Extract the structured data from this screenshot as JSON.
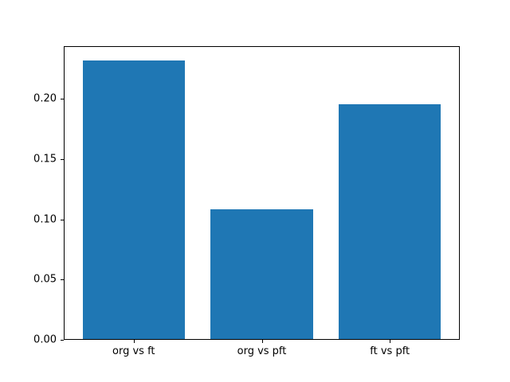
{
  "figure": {
    "background": "#ffffff",
    "text_color": "#000000"
  },
  "chart_data": {
    "type": "bar",
    "title": "",
    "xlabel": "",
    "ylabel": "",
    "categories": [
      "org vs ft",
      "org vs pft",
      "ft vs pft"
    ],
    "values": [
      0.232,
      0.108,
      0.196
    ],
    "bar_color": "#1f77b4",
    "bar_width": 0.8,
    "xlim": [
      -0.54,
      2.54
    ],
    "ylim": [
      0,
      0.2436
    ],
    "yticks": [
      0.0,
      0.05,
      0.1,
      0.15,
      0.2
    ],
    "ytick_labels": [
      "0.00",
      "0.05",
      "0.10",
      "0.15",
      "0.20"
    ],
    "grid": false,
    "legend": null
  }
}
